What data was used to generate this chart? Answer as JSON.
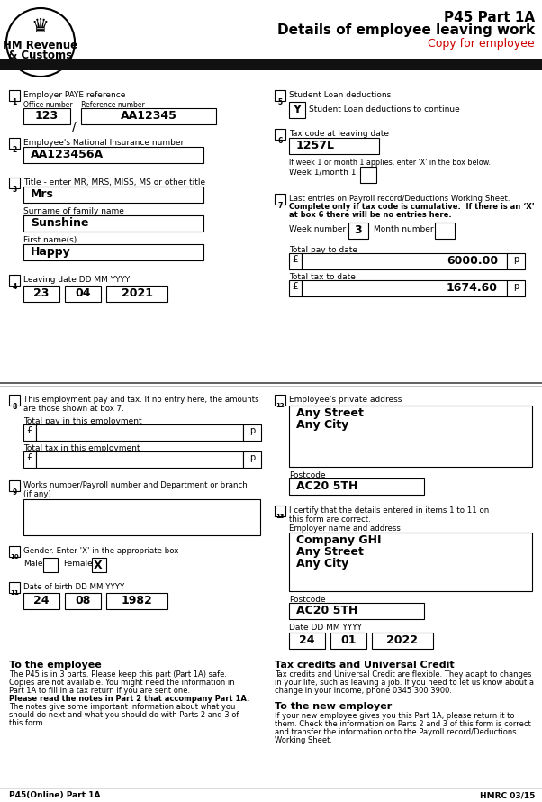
{
  "title": "P45 Part 1A",
  "subtitle": "Details of employee leaving work",
  "copy_text": "Copy for employee",
  "bg_color": "#ffffff",
  "fields": {
    "employer_office": "123",
    "employer_ref": "AA12345",
    "ni_number": "AA123456A",
    "title_val": "Mrs",
    "surname": "Sunshine",
    "firstname": "Happy",
    "leaving_dd": "23",
    "leaving_mm": "04",
    "leaving_yyyy": "2021",
    "student_loan": "Y",
    "tax_code": "1257L",
    "week_number": "3",
    "total_pay": "6000.00",
    "total_tax": "1674.60",
    "address_line1": "Any Street",
    "address_line2": "Any City",
    "postcode": "AC20 5TH",
    "employer_name": "Company GHI",
    "employer_addr1": "Any Street",
    "employer_addr2": "Any City",
    "employer_postcode": "AC20 5TH",
    "date_dd": "24",
    "date_mm": "01",
    "date_yyyy": "2022",
    "dob_dd": "24",
    "dob_mm": "08",
    "dob_yyyy": "1982",
    "gender_female": "X"
  }
}
